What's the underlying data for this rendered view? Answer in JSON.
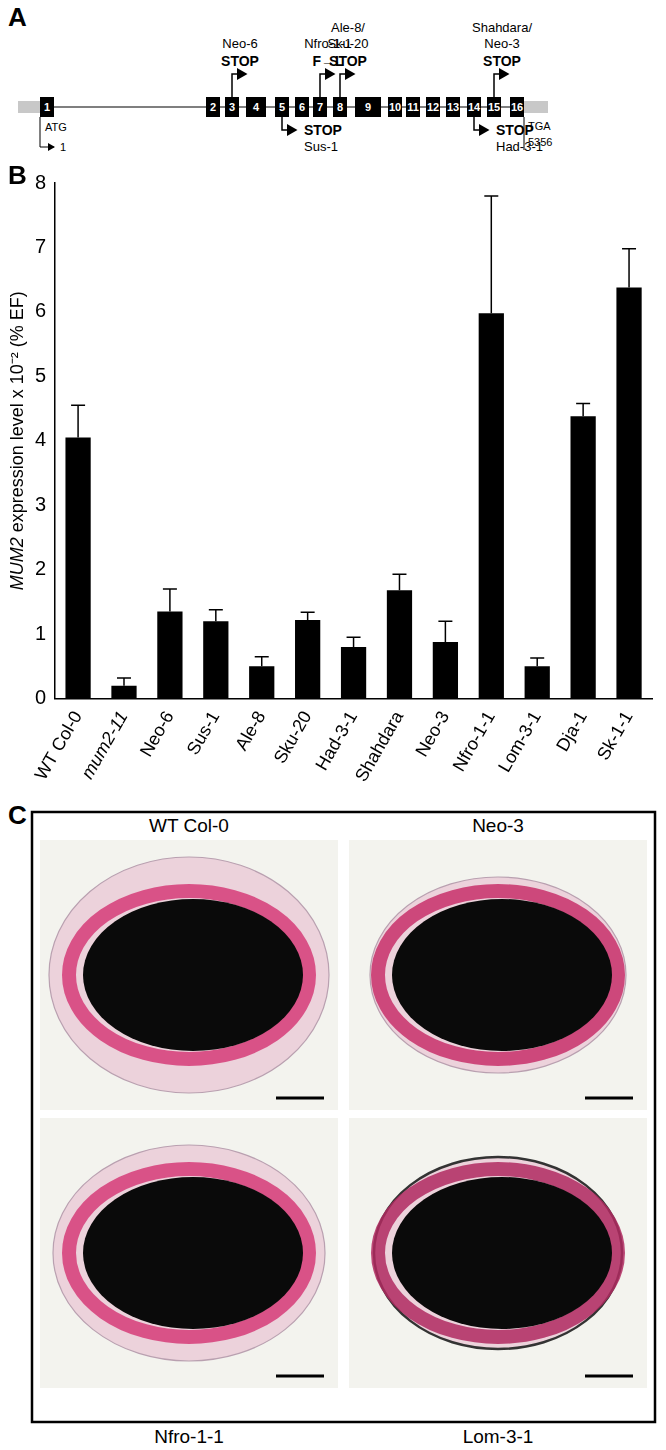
{
  "panel_labels": [
    "A",
    "B",
    "C"
  ],
  "gene_diagram": {
    "exons": [
      1,
      2,
      3,
      4,
      5,
      6,
      7,
      8,
      9,
      10,
      11,
      12,
      13,
      14,
      15,
      16
    ],
    "start": {
      "codon": "ATG",
      "position": 1
    },
    "end": {
      "codon": "TGA",
      "position": 5356
    },
    "mutations": [
      {
        "label_lines": [
          "Neo-6"
        ],
        "effect": "STOP",
        "exon": 3
      },
      {
        "label_lines": [
          "Sus-1"
        ],
        "effect": "STOP",
        "exon": 5
      },
      {
        "label_lines": [
          "Nfro-1-1"
        ],
        "effect": "F→L",
        "exon": 7
      },
      {
        "label_lines": [
          "Ale-8/",
          "Sku-20"
        ],
        "effect": "STOP",
        "exon": 8
      },
      {
        "label_lines": [
          "Had-3-1"
        ],
        "effect": "STOP",
        "exon": 14
      },
      {
        "label_lines": [
          "Shahdara/",
          "Neo-3"
        ],
        "effect": "STOP",
        "exon": 15
      }
    ]
  },
  "chart_data": {
    "type": "bar",
    "categories": [
      "WT Col-0",
      "mum2-11",
      "Neo-6",
      "Sus-1",
      "Ale-8",
      "Sku-20",
      "Had-3-1",
      "Shahdara",
      "Neo-3",
      "Nfro-1-1",
      "Lom-3-1",
      "Dja-1",
      "Sk-1-1"
    ],
    "values": [
      4.05,
      0.2,
      1.35,
      1.2,
      0.5,
      1.22,
      0.8,
      1.68,
      0.88,
      5.98,
      0.5,
      4.38,
      6.38
    ],
    "errors": [
      0.5,
      0.12,
      0.35,
      0.18,
      0.15,
      0.12,
      0.15,
      0.25,
      0.32,
      1.82,
      0.13,
      0.2,
      0.6
    ],
    "color": "#000000",
    "y_label": "MUM2 expression level x 10⁻² (% EF)",
    "ylim": [
      0,
      8
    ],
    "yticks": [
      0,
      1,
      2,
      3,
      4,
      5,
      6,
      7,
      8
    ],
    "grid": false
  },
  "micrographs": {
    "labels": [
      "WT Col-0",
      "Neo-3",
      "Nfro-1-1",
      "Lom-3-1"
    ]
  }
}
